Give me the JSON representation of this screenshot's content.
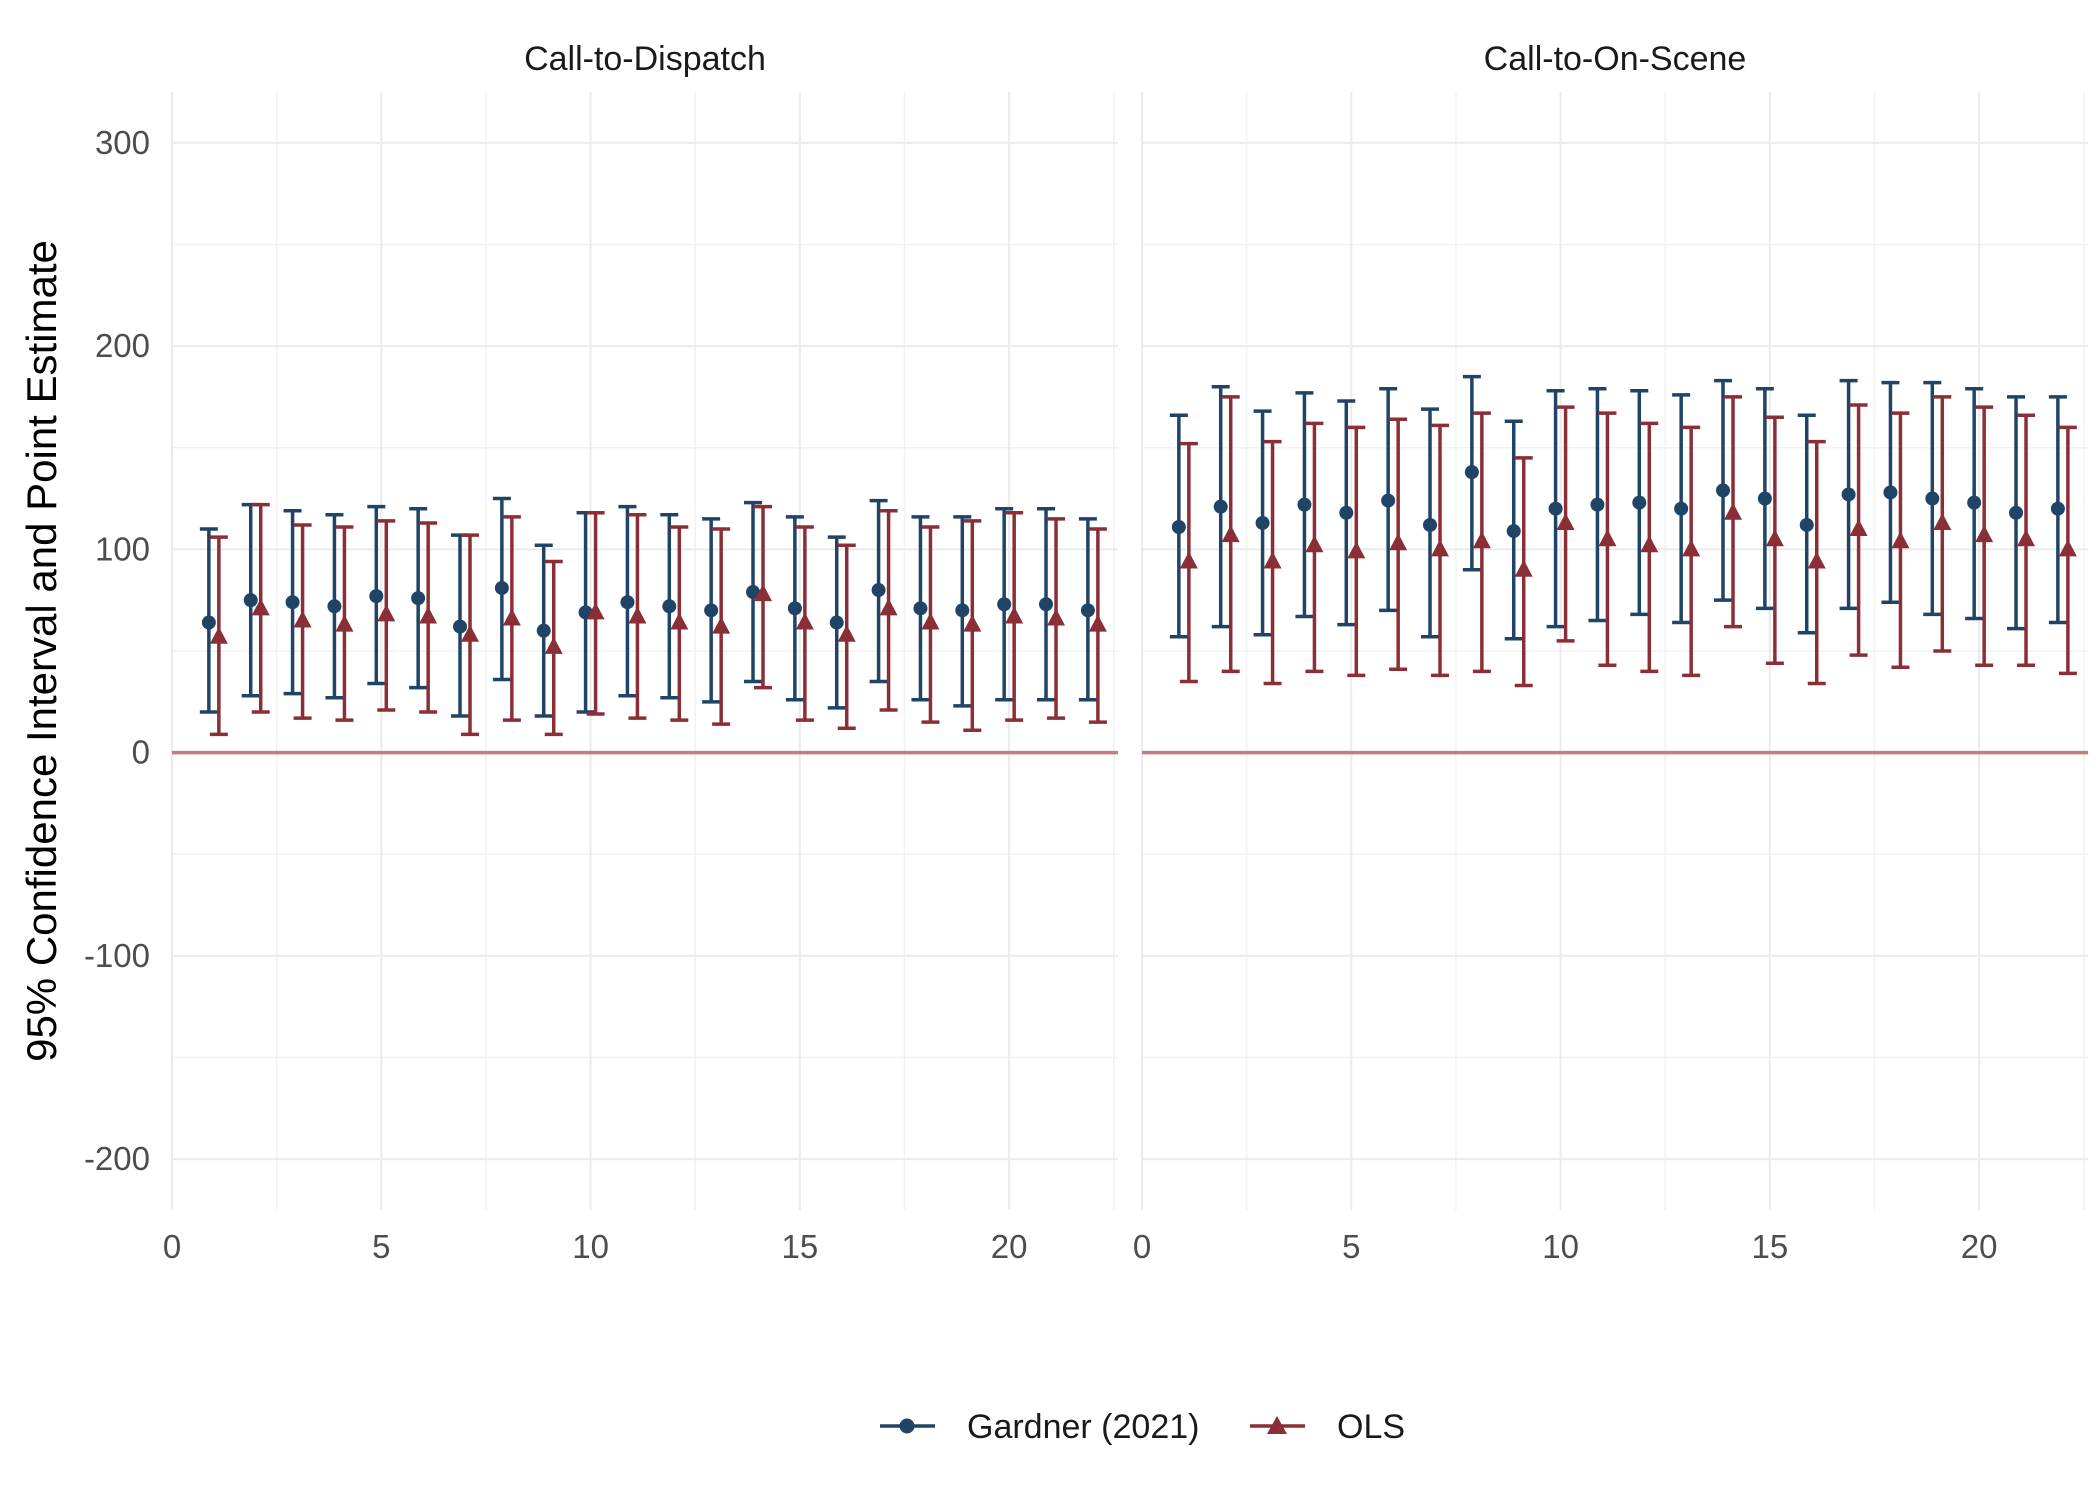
{
  "chart_data": {
    "type": "scatter",
    "ylabel": "95% Confidence Interval and Point Estimate",
    "xlabel": "",
    "xlim": [
      0,
      22.6
    ],
    "ylim": [
      -225,
      325
    ],
    "x_ticks": [
      0,
      5,
      10,
      15,
      20
    ],
    "y_ticks": [
      -200,
      -100,
      0,
      100,
      200,
      300
    ],
    "reference_line": 0,
    "grid": true,
    "legend_position": "bottom",
    "colors": {
      "gardner": "#1f4466",
      "ols": "#8b2f36",
      "reference": "#c77b7f"
    },
    "legend": [
      {
        "name": "Gardner (2021)",
        "marker": "circle",
        "color": "#1f4466"
      },
      {
        "name": "OLS",
        "marker": "triangle",
        "color": "#8b2f36"
      }
    ],
    "panels": [
      {
        "title": "Call-to-Dispatch",
        "series": [
          {
            "name": "Gardner (2021)",
            "x": [
              1,
              2,
              3,
              4,
              5,
              6,
              7,
              8,
              9,
              10,
              11,
              12,
              13,
              14,
              15,
              16,
              17,
              18,
              19,
              20,
              21,
              22
            ],
            "estimate": [
              64,
              75,
              74,
              72,
              77,
              76,
              62,
              81,
              60,
              69,
              74,
              72,
              70,
              79,
              71,
              64,
              80,
              71,
              70,
              73,
              73,
              70
            ],
            "lower": [
              20,
              28,
              29,
              27,
              34,
              32,
              18,
              36,
              18,
              20,
              28,
              27,
              25,
              35,
              26,
              22,
              35,
              26,
              23,
              26,
              26,
              26
            ],
            "upper": [
              110,
              122,
              119,
              117,
              121,
              120,
              107,
              125,
              102,
              118,
              121,
              117,
              115,
              123,
              116,
              106,
              124,
              116,
              116,
              120,
              120,
              115
            ]
          },
          {
            "name": "OLS",
            "x": [
              1,
              2,
              3,
              4,
              5,
              6,
              7,
              8,
              9,
              10,
              11,
              12,
              13,
              14,
              15,
              16,
              17,
              18,
              19,
              20,
              21,
              22
            ],
            "estimate": [
              57,
              71,
              65,
              63,
              68,
              67,
              58,
              66,
              52,
              69,
              67,
              64,
              62,
              78,
              64,
              58,
              71,
              64,
              63,
              67,
              66,
              63
            ],
            "lower": [
              9,
              20,
              17,
              16,
              21,
              20,
              9,
              16,
              9,
              19,
              17,
              16,
              14,
              32,
              16,
              12,
              21,
              15,
              11,
              16,
              17,
              15
            ],
            "upper": [
              106,
              122,
              112,
              111,
              114,
              113,
              107,
              116,
              94,
              118,
              117,
              111,
              110,
              121,
              111,
              102,
              119,
              111,
              114,
              118,
              115,
              110
            ]
          }
        ]
      },
      {
        "title": "Call-to-On-Scene",
        "series": [
          {
            "name": "Gardner (2021)",
            "x": [
              1,
              2,
              3,
              4,
              5,
              6,
              7,
              8,
              9,
              10,
              11,
              12,
              13,
              14,
              15,
              16,
              17,
              18,
              19,
              20,
              21,
              22
            ],
            "estimate": [
              111,
              121,
              113,
              122,
              118,
              124,
              112,
              138,
              109,
              120,
              122,
              123,
              120,
              129,
              125,
              112,
              127,
              128,
              125,
              123,
              118,
              120
            ],
            "lower": [
              57,
              62,
              58,
              67,
              63,
              70,
              57,
              90,
              56,
              62,
              65,
              68,
              64,
              75,
              71,
              59,
              71,
              74,
              68,
              66,
              61,
              64
            ],
            "upper": [
              166,
              180,
              168,
              177,
              173,
              179,
              169,
              185,
              163,
              178,
              179,
              178,
              176,
              183,
              179,
              166,
              183,
              182,
              182,
              179,
              175,
              175
            ]
          },
          {
            "name": "OLS",
            "x": [
              1,
              2,
              3,
              4,
              5,
              6,
              7,
              8,
              9,
              10,
              11,
              12,
              13,
              14,
              15,
              16,
              17,
              18,
              19,
              20,
              21,
              22
            ],
            "estimate": [
              94,
              107,
              94,
              102,
              99,
              103,
              100,
              104,
              90,
              113,
              105,
              102,
              100,
              118,
              105,
              94,
              110,
              104,
              113,
              107,
              105,
              100
            ],
            "lower": [
              35,
              40,
              34,
              40,
              38,
              41,
              38,
              40,
              33,
              55,
              43,
              40,
              38,
              62,
              44,
              34,
              48,
              42,
              50,
              43,
              43,
              39
            ],
            "upper": [
              152,
              175,
              153,
              162,
              160,
              164,
              161,
              167,
              145,
              170,
              167,
              162,
              160,
              175,
              165,
              153,
              171,
              167,
              175,
              170,
              166,
              160
            ]
          }
        ]
      }
    ]
  }
}
